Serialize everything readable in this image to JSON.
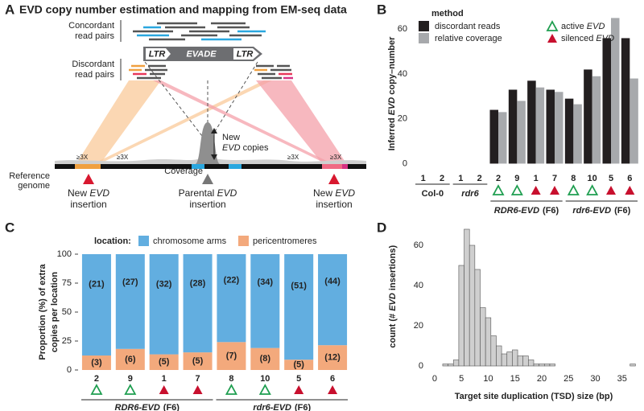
{
  "panel_a": {
    "letter": "A",
    "title": "EVD copy number estimation and mapping from EM-seq data",
    "concordant": [
      "Concordant",
      "read pairs"
    ],
    "discordant": [
      "Discordant",
      "read pairs"
    ],
    "element": {
      "ltr_left": "LTR",
      "name": "EVADE",
      "ltr_right": "LTR"
    },
    "new_copies": {
      "line1": "New",
      "line2": [
        "EVD",
        " copies"
      ]
    },
    "coverage": "Coverage",
    "thresholds": [
      "≥3X",
      "≥3X",
      "≥3X",
      "≥3X"
    ],
    "reference": [
      "Reference",
      "genome"
    ],
    "insertions": [
      {
        "line1": [
          "New ",
          "EVD"
        ],
        "line2": "insertion"
      },
      {
        "line1": [
          "Parental ",
          "EVD"
        ],
        "line2": "insertion"
      },
      {
        "line1": [
          "New ",
          "EVD"
        ],
        "line2": "insertion"
      }
    ]
  },
  "chart_data": [
    {
      "type": "grouped_bar",
      "panel": "B",
      "ylabel": [
        "Inferred ",
        "EVD",
        " copy–number"
      ],
      "legend_title": "method",
      "groups": [
        {
          "label": "Col-0",
          "italic": false,
          "categories": [
            "1",
            "2"
          ],
          "status": [
            null,
            null
          ]
        },
        {
          "label": "rdr6",
          "italic": true,
          "categories": [
            "1",
            "2"
          ],
          "status": [
            null,
            null
          ]
        },
        {
          "label": "RDR6-EVD",
          "italic": true,
          "generation": "(F6)",
          "categories": [
            "2",
            "9",
            "1",
            "7"
          ],
          "status": [
            "active",
            "active",
            "silenced",
            "silenced"
          ]
        },
        {
          "label": "rdr6-EVD",
          "italic": true,
          "generation": "(F6)",
          "categories": [
            "8",
            "10",
            "5",
            "6"
          ],
          "status": [
            "active",
            "active",
            "silenced",
            "silenced"
          ]
        }
      ],
      "series": [
        {
          "name": "discordant reads",
          "color": "#231f20",
          "values": [
            0,
            0,
            0,
            0,
            24,
            33,
            37,
            33,
            29,
            42,
            56,
            56
          ]
        },
        {
          "name": "relative coverage",
          "color": "#a7a9ac",
          "values": [
            0,
            0,
            0,
            0,
            23,
            28,
            34,
            32,
            26.5,
            39,
            65,
            38
          ]
        }
      ],
      "marker_legend": [
        {
          "status": "active",
          "label": [
            "active ",
            "EVD"
          ]
        },
        {
          "status": "silenced",
          "label": [
            "silenced ",
            "EVD"
          ]
        }
      ],
      "status_colors": {
        "active": "#1f9e50",
        "silenced": "#c8102e"
      },
      "ylim": [
        -2,
        68
      ],
      "yticks": [
        0,
        20,
        40,
        60
      ]
    },
    {
      "type": "stacked_bar",
      "panel": "C",
      "ylabel": [
        "Proportion (%) of extra",
        "copies per location"
      ],
      "legend_title": "location:",
      "groups": [
        {
          "label": "RDR6-EVD",
          "italic": true,
          "generation": "(F6)",
          "categories": [
            "2",
            "9",
            "1",
            "7"
          ],
          "status": [
            "active",
            "active",
            "silenced",
            "silenced"
          ]
        },
        {
          "label": "rdr6-EVD",
          "italic": true,
          "generation": "(F6)",
          "categories": [
            "8",
            "10",
            "5",
            "6"
          ],
          "status": [
            "active",
            "active",
            "silenced",
            "silenced"
          ]
        }
      ],
      "series": [
        {
          "name": "chromosome arms",
          "color": "#62aee0",
          "values": [
            87.5,
            81.8,
            86.5,
            84.8,
            75.9,
            81,
            91.1,
            78.6
          ],
          "count_labels": [
            "(21)",
            "(27)",
            "(32)",
            "(28)",
            "(22)",
            "(34)",
            "(51)",
            "(44)"
          ]
        },
        {
          "name": "pericentromeres",
          "color": "#f3a97c",
          "values": [
            12.5,
            18.2,
            13.5,
            15.2,
            24.1,
            19,
            8.9,
            21.4
          ],
          "count_labels": [
            "(3)",
            "(6)",
            "(5)",
            "(5)",
            "(7)",
            "(8)",
            "(5)",
            "(12)"
          ]
        }
      ],
      "status_colors": {
        "active": "#1f9e50",
        "silenced": "#c8102e"
      },
      "ylim": [
        0,
        100
      ],
      "yticks": [
        0,
        25,
        50,
        75,
        100
      ]
    },
    {
      "type": "histogram",
      "panel": "D",
      "xlabel": "Target site duplication (TSD) size (bp)",
      "ylabel": [
        "count (# ",
        "EVD",
        " insertions)"
      ],
      "color": "#cfcfcf",
      "bins": [
        1.5,
        2.5,
        3.5,
        4.5,
        5.5,
        6.5,
        7.5,
        8.5,
        9.5,
        10.5,
        11.5,
        12.5,
        13.5,
        14.5,
        15.5,
        16.5,
        17.5,
        18.5,
        19.5,
        20.5,
        21.5,
        22.5,
        23.5,
        24.5,
        25.5,
        26.5,
        27.5,
        28.5,
        29.5,
        30.5,
        31.5,
        32.5,
        33.5,
        34.5,
        35.5,
        36.5,
        37.5
      ],
      "counts": [
        1,
        1,
        3,
        50,
        68,
        60,
        48,
        29,
        24,
        15,
        10,
        6,
        7,
        8,
        5,
        5,
        3,
        1,
        1,
        1,
        1,
        0,
        0,
        0,
        0,
        0,
        0,
        0,
        0,
        0,
        0,
        0,
        0,
        0,
        0,
        1
      ],
      "xlim": [
        -1.5,
        38.5
      ],
      "xticks": [
        0,
        5,
        10,
        15,
        20,
        25,
        30,
        35
      ],
      "ylim": [
        -3,
        72
      ],
      "yticks": [
        0,
        20,
        40,
        60
      ]
    }
  ]
}
